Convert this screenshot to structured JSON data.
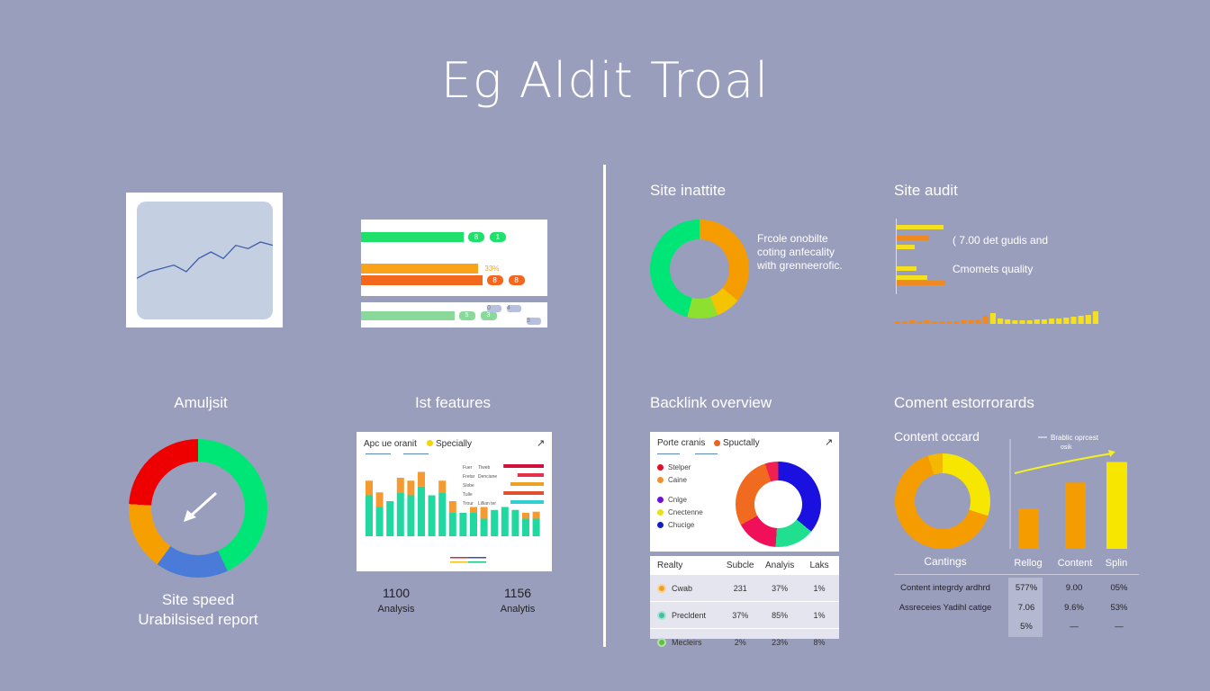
{
  "title": "Eg Aldit  Troal",
  "left": {
    "line_chart": {
      "values": [
        2,
        3,
        3.5,
        4,
        3,
        5,
        6,
        5,
        7,
        6.5,
        7.5,
        7
      ]
    },
    "bars_panel": {
      "rows": [
        {
          "color": "#1ee06a",
          "fill": 0.55,
          "tags": [
            "8",
            "1"
          ]
        },
        {
          "color": "#fba318",
          "fill": 0.63,
          "tags": [
            "33%"
          ]
        },
        {
          "color": "#f4681e",
          "fill": 0.65,
          "tags": [
            "8",
            "8"
          ]
        }
      ],
      "row2": {
        "color": "#8ad99a",
        "fill": 0.5,
        "tags": [
          "5",
          "3"
        ],
        "side_tags": [
          "0",
          "4",
          "5"
        ]
      }
    },
    "gauge": {
      "heading": "Amuljsit",
      "segments": [
        {
          "color": "#00e676",
          "value": 43
        },
        {
          "color": "#4a7bd8",
          "value": 17
        },
        {
          "color": "#f5a000",
          "value": 16
        },
        {
          "color": "#ee0000",
          "value": 24
        }
      ],
      "line1": "Site speed",
      "line2": "Urabilsised report"
    },
    "features": {
      "heading": "Ist features",
      "card_title": "Apc ue oranit",
      "card_badge": "Specially",
      "badge_color": "#f5d400",
      "bars": [
        {
          "g": 70,
          "o": 25
        },
        {
          "g": 50,
          "o": 25
        },
        {
          "g": 60,
          "o": 0
        },
        {
          "g": 75,
          "o": 25
        },
        {
          "g": 70,
          "o": 25
        },
        {
          "g": 85,
          "o": 25
        },
        {
          "g": 70,
          "o": 0
        },
        {
          "g": 75,
          "o": 20
        },
        {
          "g": 40,
          "o": 20
        },
        {
          "g": 40,
          "o": 0
        },
        {
          "g": 40,
          "o": 10
        },
        {
          "g": 30,
          "o": 20
        },
        {
          "g": 45,
          "o": 0
        },
        {
          "g": 50,
          "o": 0
        },
        {
          "g": 45,
          "o": 0
        },
        {
          "g": 30,
          "o": 10
        },
        {
          "g": 30,
          "o": 12
        }
      ],
      "legend": [
        {
          "a": "Fuer",
          "b": "Tlweb",
          "color": "#d0103a",
          "fill": 0.9
        },
        {
          "a": "Fretar",
          "b": "Denciane",
          "color": "#e8304a",
          "fill": 0.6
        },
        {
          "a": "Slobe",
          "b": "",
          "color": "#f0a020",
          "fill": 0.75
        },
        {
          "a": "Tulle",
          "b": "",
          "color": "#e05030",
          "fill": 0.9
        },
        {
          "a": "Trour",
          "b": "Lillian ter",
          "color": "#30d0d0",
          "fill": 0.75
        }
      ],
      "stats": [
        {
          "value": "1100",
          "label": "Analysis"
        },
        {
          "value": "1156",
          "label": "Analytis"
        }
      ]
    }
  },
  "right": {
    "site_inattite": {
      "heading": "Site inattite",
      "segments": [
        {
          "color": "#f59c00",
          "value": 36
        },
        {
          "color": "#f5c400",
          "value": 8
        },
        {
          "color": "#8ee030",
          "value": 10
        },
        {
          "color": "#00e676",
          "value": 46
        }
      ],
      "text": [
        "Frcole onobilte",
        "coting anfecality",
        "with grenneerofic."
      ]
    },
    "site_audit": {
      "heading": "Site audit",
      "bars": [
        {
          "color": "#f5e020",
          "w": 52
        },
        {
          "color": "#f08a20",
          "w": 36
        },
        {
          "color": "#f5e020",
          "w": 20
        },
        {
          "color": "#f5e020",
          "w": 22
        },
        {
          "color": "#f5e020",
          "w": 34
        },
        {
          "color": "#f08a20",
          "w": 54
        }
      ],
      "text1": "( 7.00 det gudis and",
      "text2": "Cmomets quality",
      "mini": [
        3,
        3,
        4,
        3,
        4,
        3,
        3,
        3,
        3,
        4,
        4,
        5,
        9,
        12,
        6,
        5,
        4,
        4,
        4,
        5,
        5,
        6,
        6,
        7,
        8,
        9,
        10,
        14
      ],
      "mini_colors": [
        "#f08a20",
        "#f5e020"
      ]
    },
    "backlink": {
      "heading": "Backlink overview",
      "card_title": "Porte cranis",
      "card_badge": "Spuctally",
      "badge_color": "#f06020",
      "legend": [
        {
          "label": "Stelper",
          "color": "#e0102a"
        },
        {
          "label": "Caine",
          "color": "#f09030"
        },
        {
          "label": "Cnlge",
          "color": "#7010d0"
        },
        {
          "label": "Cnectenne",
          "color": "#e8e020"
        },
        {
          "label": "Chucige",
          "color": "#1020c0"
        }
      ],
      "segments": [
        {
          "color": "#1a10e0",
          "value": 36
        },
        {
          "color": "#20e090",
          "value": 15
        },
        {
          "color": "#f0105a",
          "value": 16
        },
        {
          "color": "#f06a20",
          "value": 28
        },
        {
          "color": "#f02050",
          "value": 5
        }
      ],
      "table": {
        "headers": [
          "Realty",
          "Subcle",
          "Analyis",
          "Laks"
        ],
        "rows": [
          {
            "icon_color": "#f0a020",
            "cells": [
              "Cwab",
              "231",
              "37%",
              "1%"
            ]
          },
          {
            "icon_color": "#40c0a0",
            "cells": [
              "Precldent",
              "37%",
              "85%",
              "1%"
            ]
          },
          {
            "icon_color": "#60c040",
            "cells": [
              "Mecleirs",
              "2%",
              "23%",
              "8%"
            ]
          }
        ]
      }
    },
    "content": {
      "heading": "Coment estorrorards",
      "sub": "Content occard",
      "segments": [
        {
          "color": "#f7e600",
          "value": 30
        },
        {
          "color": "#f59c00",
          "value": 65
        },
        {
          "color": "#f5b800",
          "value": 5
        }
      ],
      "donut_label": "Cantings",
      "trend_label": [
        "Brablic oprcest",
        "osik"
      ],
      "bars": [
        {
          "label": "Rellog",
          "value": 35,
          "color": "#f59c00"
        },
        {
          "label": "Content",
          "value": 58,
          "color": "#f59c00"
        },
        {
          "label": "Splin",
          "value": 76,
          "color": "#f7e600"
        }
      ],
      "table": [
        {
          "label": "Content integrdy ardhrd",
          "cells": [
            "577%",
            "9.00",
            "05%"
          ]
        },
        {
          "label": "Assreceies Yadihl catige",
          "cells": [
            "7.06",
            "9.6%",
            "53%"
          ]
        },
        {
          "label": "",
          "cells": [
            "5%",
            "—",
            "—"
          ]
        }
      ]
    }
  }
}
